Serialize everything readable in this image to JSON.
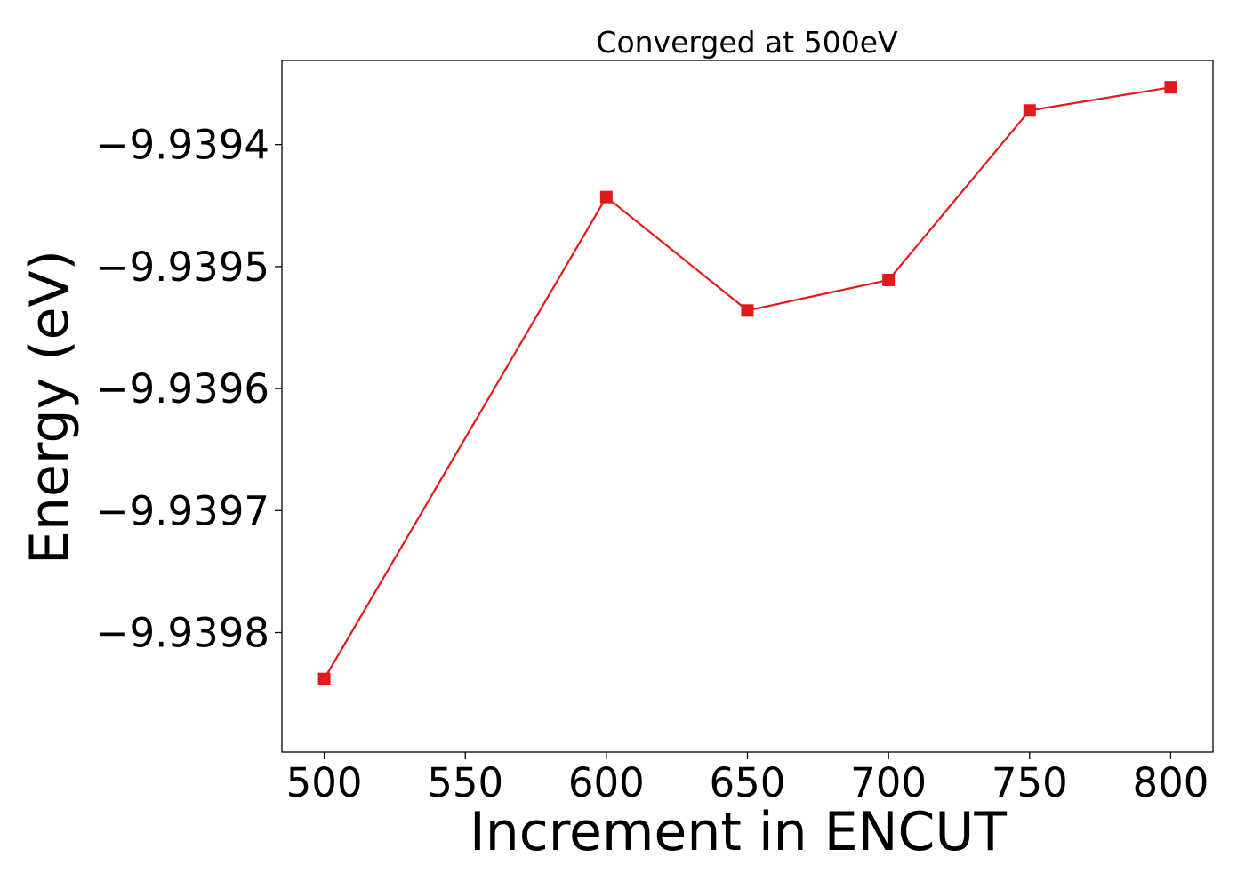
{
  "chart_data": {
    "type": "line",
    "title": "Converged at 500eV",
    "xlabel": "Increment in ENCUT",
    "ylabel": "Energy (eV)",
    "x": [
      500,
      600,
      650,
      700,
      750,
      800
    ],
    "series": [
      {
        "values": [
          -9.939838,
          -9.939443,
          -9.939536,
          -9.939511,
          -9.939372,
          -9.939353
        ],
        "color": "#e31a1c",
        "marker": "square"
      }
    ],
    "xlim": [
      485,
      815
    ],
    "ylim": [
      -9.939898,
      -9.939331
    ],
    "xticks": [
      500,
      550,
      600,
      650,
      700,
      750,
      800
    ],
    "xtick_labels": [
      "500",
      "550",
      "600",
      "650",
      "700",
      "750",
      "800"
    ],
    "yticks": [
      -9.9398,
      -9.9397,
      -9.9396,
      -9.9395,
      -9.9394
    ],
    "ytick_labels": [
      "−9.9398",
      "−9.9397",
      "−9.9396",
      "−9.9395",
      "−9.9394"
    ],
    "grid": false,
    "legend": "none"
  }
}
